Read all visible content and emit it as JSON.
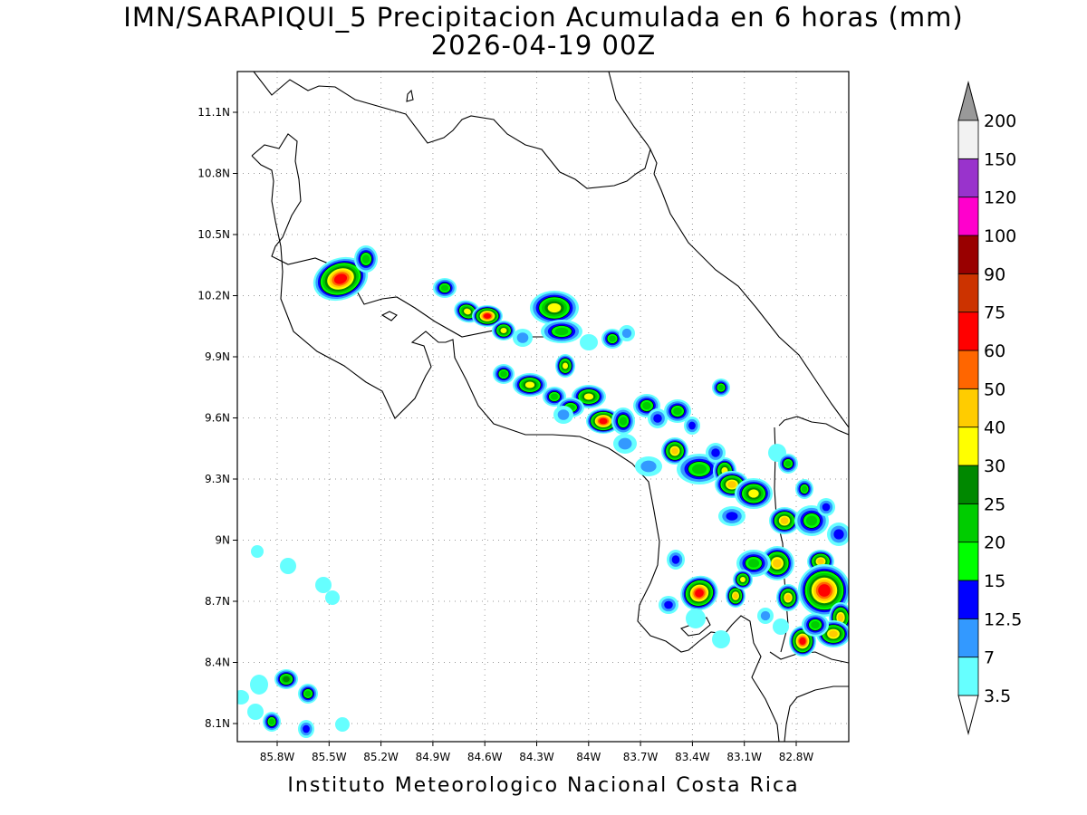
{
  "header": {
    "title_line1": "IMN/SARAPIQUI_5 Precipitacion Acumulada en 6 horas (mm)",
    "title_line2": "2026-04-19 00Z"
  },
  "footer": {
    "credit": "Instituto Meteorologico Nacional Costa Rica"
  },
  "axes": {
    "lat_ticks": [
      "11.1N",
      "10.8N",
      "10.5N",
      "10.2N",
      "9.9N",
      "9.6N",
      "9.3N",
      "9N",
      "8.7N",
      "8.4N",
      "8.1N"
    ],
    "lon_ticks": [
      "85.8W",
      "85.5W",
      "85.2W",
      "84.9W",
      "84.6W",
      "84.3W",
      "84W",
      "83.7W",
      "83.4W",
      "83.1W",
      "82.8W"
    ]
  },
  "colorbar": {
    "labels": [
      "3.5",
      "7",
      "12.5",
      "15",
      "20",
      "25",
      "30",
      "40",
      "50",
      "60",
      "75",
      "90",
      "100",
      "120",
      "150",
      "200"
    ],
    "colors": [
      "#66ffff",
      "#3399ff",
      "#0000ff",
      "#00ff00",
      "#00cc00",
      "#008800",
      "#ffff00",
      "#ffcc00",
      "#ff6600",
      "#ff0000",
      "#cc3300",
      "#990000",
      "#ff00cc",
      "#9933cc",
      "#f2f2f2"
    ],
    "over_color": "#999999",
    "under_color": "#ffffff"
  },
  "precip_colors": {
    "c3": "#66ffff",
    "c7": "#3399ff",
    "c12": "#0000ff",
    "c15": "#00ff00",
    "c20": "#00cc00",
    "c25": "#008800",
    "c30": "#ffff00",
    "c40": "#ffcc00",
    "c50": "#ff6600",
    "c60": "#ff0000"
  }
}
